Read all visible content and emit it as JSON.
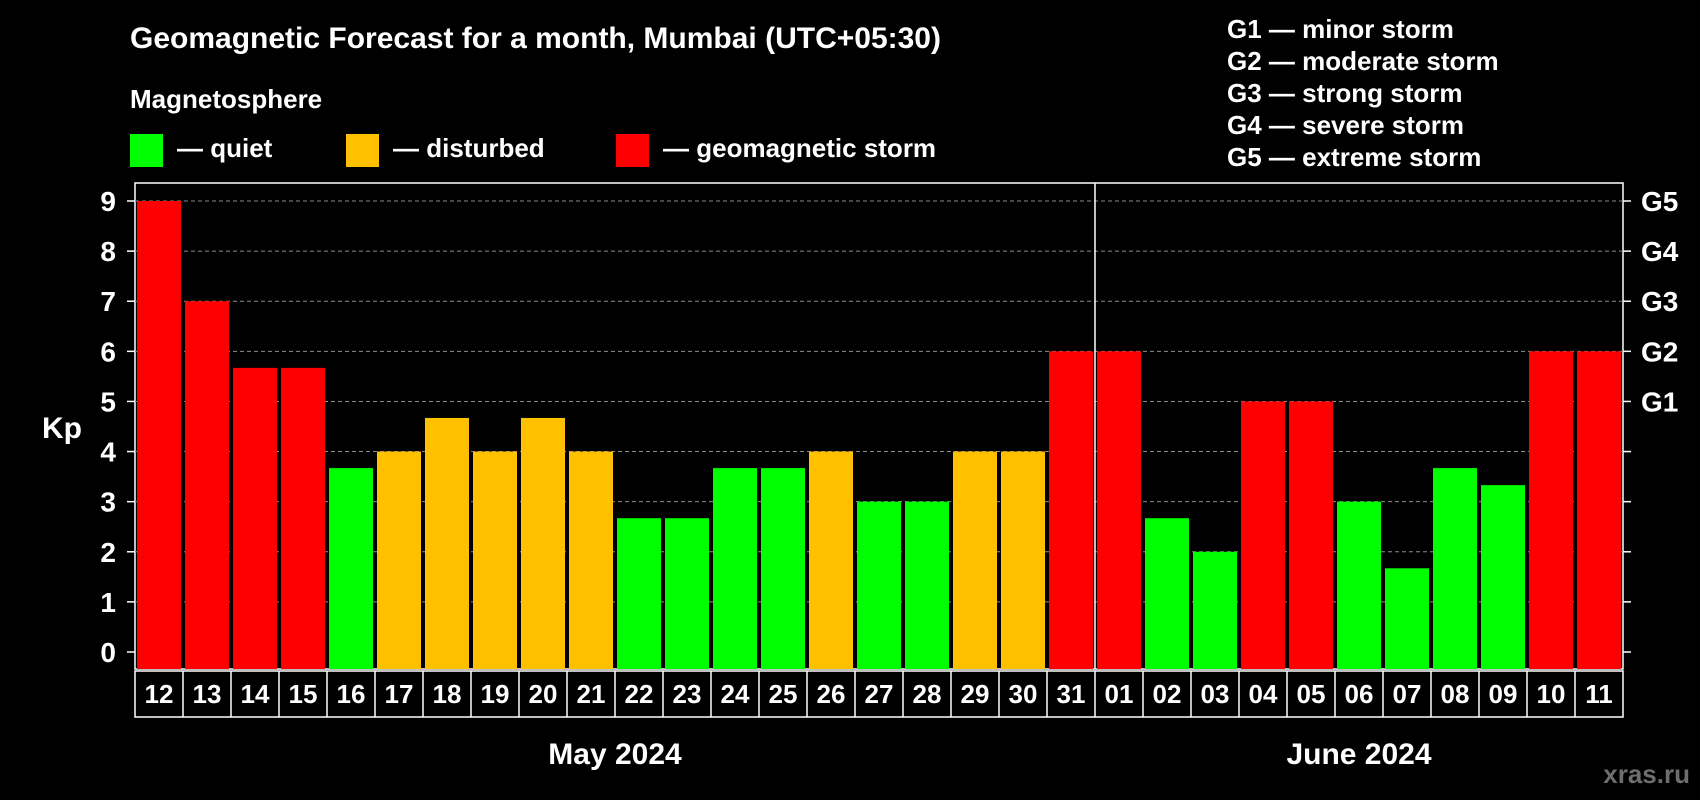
{
  "chart_data": {
    "type": "bar",
    "title": "Geomagnetic Forecast for a month, Mumbai (UTC+05:30)",
    "subtitle": "Magnetosphere",
    "ylabel": "Kp",
    "ylim": [
      0,
      9
    ],
    "yticks": [
      "0",
      "1",
      "2",
      "3",
      "4",
      "5",
      "6",
      "7",
      "8",
      "9"
    ],
    "right_axis": [
      {
        "kp": 5,
        "label": "G1"
      },
      {
        "kp": 6,
        "label": "G2"
      },
      {
        "kp": 7,
        "label": "G3"
      },
      {
        "kp": 8,
        "label": "G4"
      },
      {
        "kp": 9,
        "label": "G5"
      }
    ],
    "grid": true,
    "legend": [
      {
        "label": "— quiet",
        "color": "#00ff00"
      },
      {
        "label": "— disturbed",
        "color": "#ffc000"
      },
      {
        "label": "— geomagnetic storm",
        "color": "#ff0000"
      }
    ],
    "g_scale_legend": [
      "G1 — minor storm",
      "G2 — moderate storm",
      "G3 — strong storm",
      "G4 — severe storm",
      "G5 — extreme storm"
    ],
    "categories": [
      "12",
      "13",
      "14",
      "15",
      "16",
      "17",
      "18",
      "19",
      "20",
      "21",
      "22",
      "23",
      "24",
      "25",
      "26",
      "27",
      "28",
      "29",
      "30",
      "31",
      "01",
      "02",
      "03",
      "04",
      "05",
      "06",
      "07",
      "08",
      "09",
      "10",
      "11"
    ],
    "values": [
      9,
      7,
      5.67,
      5.67,
      3.67,
      4,
      4.67,
      4,
      4.67,
      4,
      2.67,
      2.67,
      3.67,
      3.67,
      4,
      3,
      3,
      4,
      4,
      6,
      6,
      2.67,
      2,
      5,
      5,
      3,
      1.67,
      3.67,
      3.33,
      6,
      6
    ],
    "colors": [
      "#ff0000",
      "#ff0000",
      "#ff0000",
      "#ff0000",
      "#00ff00",
      "#ffc000",
      "#ffc000",
      "#ffc000",
      "#ffc000",
      "#ffc000",
      "#00ff00",
      "#00ff00",
      "#00ff00",
      "#00ff00",
      "#ffc000",
      "#00ff00",
      "#00ff00",
      "#ffc000",
      "#ffc000",
      "#ff0000",
      "#ff0000",
      "#00ff00",
      "#00ff00",
      "#ff0000",
      "#ff0000",
      "#00ff00",
      "#00ff00",
      "#00ff00",
      "#00ff00",
      "#ff0000",
      "#ff0000"
    ],
    "months": [
      {
        "label": "May 2024",
        "start": 0,
        "end": 19
      },
      {
        "label": "June 2024",
        "start": 20,
        "end": 30
      }
    ],
    "watermark": "xras.ru"
  }
}
